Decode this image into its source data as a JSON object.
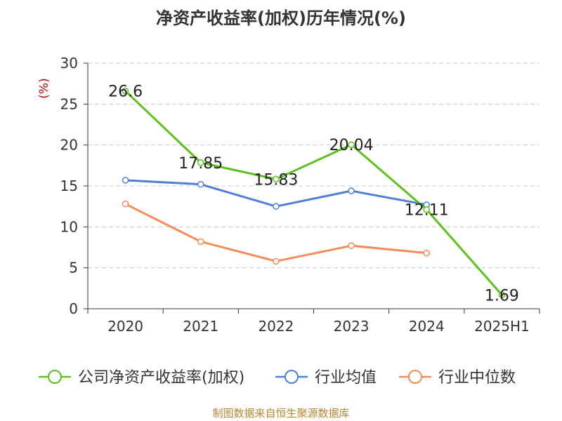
{
  "title": "净资产收益率(加权)历年情况(%)",
  "source": "制图数据来自恒生聚源数据库",
  "chart_data": {
    "type": "line",
    "title": "净资产收益率(加权)历年情况(%)",
    "ylabel": "(%)",
    "xlabel": "",
    "categories": [
      "2020",
      "2021",
      "2022",
      "2023",
      "2024",
      "2025H1"
    ],
    "ylim": [
      0,
      30
    ],
    "yticks": [
      0,
      5,
      10,
      15,
      20,
      25,
      30
    ],
    "grid": true,
    "legend_position": "bottom",
    "series": [
      {
        "name": "公司净资产收益率(加权)",
        "color": "#5cc11d",
        "values": [
          26.6,
          17.85,
          15.83,
          20.04,
          12.11,
          1.69
        ],
        "labels": [
          "26.6",
          "17.85",
          "15.83",
          "20.04",
          "12.11",
          "1.69"
        ]
      },
      {
        "name": "行业均值",
        "color": "#4f7fd8",
        "values": [
          15.7,
          15.2,
          12.5,
          14.4,
          12.7,
          null
        ]
      },
      {
        "name": "行业中位数",
        "color": "#f38c5b",
        "values": [
          12.8,
          8.2,
          5.8,
          7.7,
          6.8,
          null
        ]
      }
    ]
  }
}
